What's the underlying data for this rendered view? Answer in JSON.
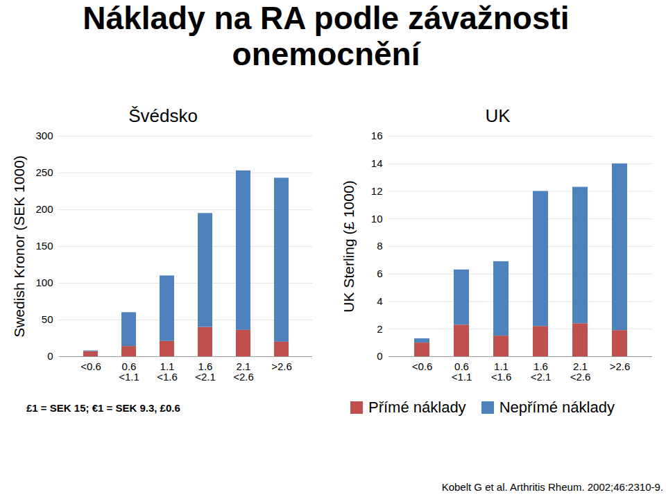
{
  "title": "Náklady na RA podle závažnosti onemocnění",
  "footnote": "£1 = SEK 15; €1 = SEK 9.3, £0.6",
  "source": "Kobelt  G et al. Arthritis Rheum. 2002;46:2310-9.",
  "chart_data": [
    {
      "type": "bar",
      "title": "Švédsko",
      "ylabel": "Swedish Kronor (SEK 1000)",
      "categories": [
        "<0.6",
        "0.6\n<1.1",
        "1.1\n<1.6",
        "1.6\n<2.1",
        "2.1\n<2.6",
        ">2.6"
      ],
      "series": [
        {
          "name": "Přímé náklady",
          "color": "#c0504d",
          "values": [
            7,
            14,
            21,
            40,
            36,
            20
          ]
        },
        {
          "name": "Nepřímé náklady",
          "color": "#4f81bd",
          "values": [
            1,
            46,
            89,
            155,
            217,
            223
          ]
        }
      ],
      "ylim": [
        0,
        300
      ],
      "yticks": [
        0,
        50,
        100,
        150,
        200,
        250,
        300
      ],
      "grid": true,
      "stacked": true
    },
    {
      "type": "bar",
      "title": "UK",
      "ylabel": "UK Sterling (£ 1000)",
      "categories": [
        "<0.6",
        "0.6\n<1.1",
        "1.1\n<1.6",
        "1.6\n<2.1",
        "2.1\n<2.6",
        ">2.6"
      ],
      "series": [
        {
          "name": "Přímé náklady",
          "color": "#c0504d",
          "values": [
            1.0,
            2.3,
            1.5,
            2.2,
            2.4,
            1.9
          ]
        },
        {
          "name": "Nepřímé náklady",
          "color": "#4f81bd",
          "values": [
            0.3,
            4.0,
            5.4,
            9.8,
            9.9,
            12.1
          ]
        }
      ],
      "ylim": [
        0,
        16
      ],
      "yticks": [
        0,
        2,
        4,
        6,
        8,
        10,
        12,
        14,
        16
      ],
      "grid": true,
      "stacked": true
    }
  ]
}
